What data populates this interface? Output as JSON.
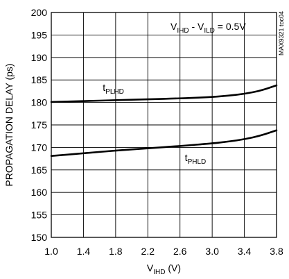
{
  "chart_data": {
    "type": "line",
    "xlabel": {
      "main": "V",
      "sub": "IHD",
      "unit": " (V)"
    },
    "ylabel": "PROPAGATION DELAY (ps)",
    "annotation": {
      "parts": [
        "V",
        "IHD",
        " - V",
        "ILD",
        " = 0.5V"
      ]
    },
    "side_label": "MAX9321 toc04",
    "xlim": [
      1.0,
      3.8
    ],
    "ylim": [
      150,
      200
    ],
    "x_ticks": [
      "1.0",
      "1.4",
      "1.8",
      "2.2",
      "2.6",
      "3.0",
      "3.4",
      "3.8"
    ],
    "y_ticks": [
      "150",
      "155",
      "160",
      "165",
      "170",
      "175",
      "180",
      "185",
      "190",
      "195",
      "200"
    ],
    "grid": true,
    "series": [
      {
        "name": "tPLHD",
        "label": {
          "main": "t",
          "sub": "PLHD"
        },
        "x": [
          1.0,
          1.4,
          1.8,
          2.2,
          2.6,
          3.0,
          3.2,
          3.4,
          3.6,
          3.8
        ],
        "y": [
          180.1,
          180.3,
          180.5,
          180.7,
          180.9,
          181.2,
          181.5,
          181.9,
          182.6,
          183.8
        ]
      },
      {
        "name": "tPHLD",
        "label": {
          "main": "t",
          "sub": "PHLD"
        },
        "x": [
          1.0,
          1.4,
          1.8,
          2.2,
          2.6,
          3.0,
          3.2,
          3.4,
          3.6,
          3.8
        ],
        "y": [
          168.1,
          168.7,
          169.3,
          169.8,
          170.3,
          170.9,
          171.3,
          171.8,
          172.6,
          173.8
        ]
      }
    ],
    "colors": {
      "line": "#000000",
      "grid": "#000000"
    }
  }
}
